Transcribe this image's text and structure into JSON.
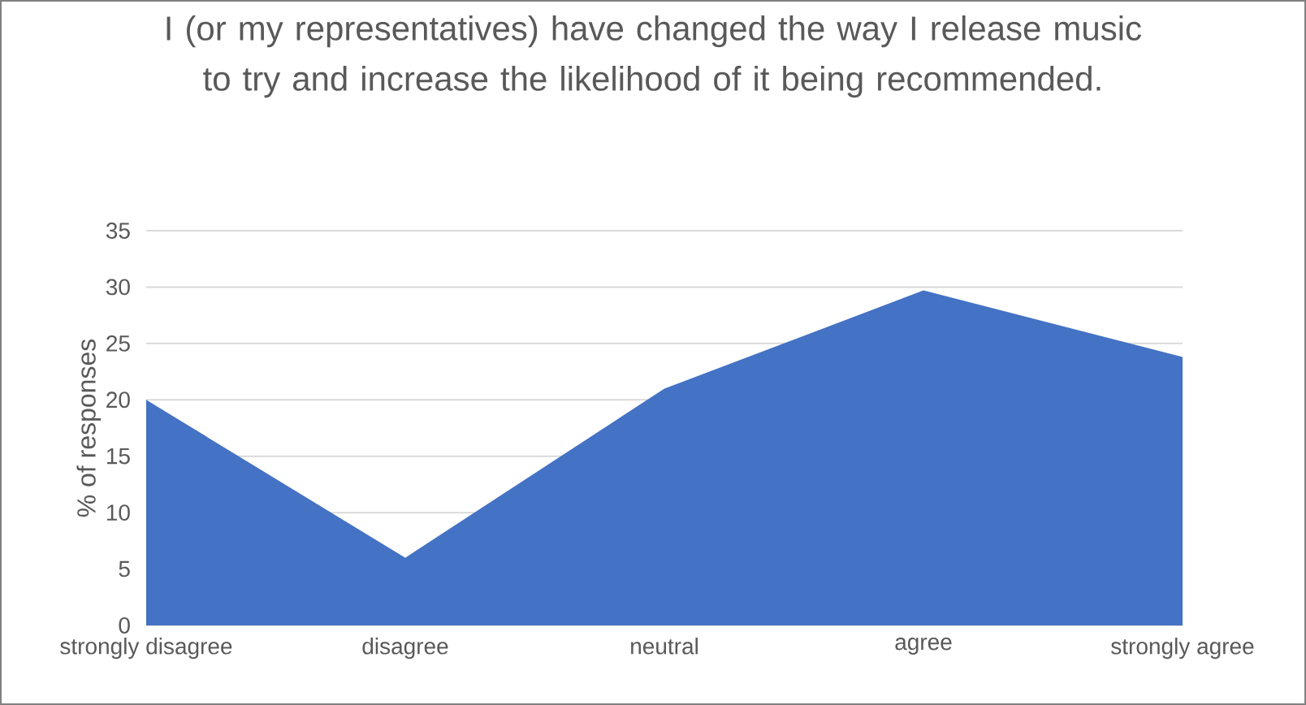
{
  "chart_data": {
    "type": "area",
    "title": "I (or my representatives) have changed the way I release music to try and increase the likelihood of it being recommended.",
    "ylabel": "% of responses",
    "categories": [
      "strongly disagree",
      "disagree",
      "neutral",
      "agree",
      "strongly agree"
    ],
    "values": [
      20,
      6,
      21,
      29.7,
      23.8
    ],
    "color": "#4472c4",
    "ylim": [
      0,
      35
    ],
    "yticks": [
      0,
      5,
      10,
      15,
      20,
      25,
      30,
      35
    ],
    "grid": "y"
  }
}
